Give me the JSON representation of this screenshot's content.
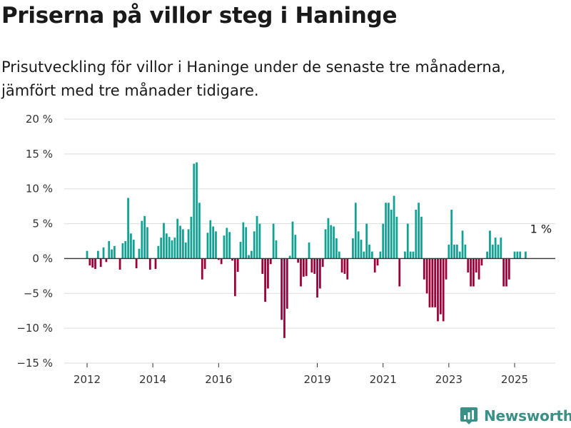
{
  "header": {
    "title": "Priserna på villor steg i Haninge",
    "subtitle": "Prisutveckling för villor i Haninge under de senaste tre månaderna, jämfört med tre månader tidigare."
  },
  "brand": {
    "name": "Newsworthy",
    "icon": "newsworthy-logo-icon",
    "color": "#3a8f86"
  },
  "colors": {
    "positive": "#10a393",
    "negative": "#9b0038",
    "grid": "#dddddd",
    "zero_line": "#333333"
  },
  "chart_data": {
    "type": "bar",
    "title": "Priserna på villor steg i Haninge",
    "subtitle": "Prisutveckling för villor i Haninge under de senaste tre månaderna, jämfört med tre månader tidigare.",
    "xlabel": "",
    "ylabel": "",
    "ylim": [
      -15,
      20
    ],
    "y_ticks": [
      {
        "value": 20,
        "label": "20 %"
      },
      {
        "value": 15,
        "label": "15 %"
      },
      {
        "value": 10,
        "label": "10 %"
      },
      {
        "value": 5,
        "label": "5 %"
      },
      {
        "value": 0,
        "label": "0 %"
      },
      {
        "value": -5,
        "label": "−5 %"
      },
      {
        "value": -10,
        "label": "−10 %"
      },
      {
        "value": -15,
        "label": "−15 %"
      }
    ],
    "x_ticks": [
      {
        "year": 2012,
        "label": "2012"
      },
      {
        "year": 2014,
        "label": "2014"
      },
      {
        "year": 2016,
        "label": "2016"
      },
      {
        "year": 2019,
        "label": "2019"
      },
      {
        "year": 2021,
        "label": "2021"
      },
      {
        "year": 2023,
        "label": "2023"
      },
      {
        "year": 2025,
        "label": "2025"
      }
    ],
    "grid": true,
    "legend": "none",
    "start_month": "2012-01",
    "unit": "%",
    "values": [
      1.1,
      -1.0,
      -1.3,
      -1.5,
      1.1,
      -1.2,
      1.6,
      -0.5,
      2.5,
      1.3,
      1.8,
      0,
      -1.6,
      2.2,
      2.5,
      8.7,
      3.6,
      2.7,
      -1.4,
      1.4,
      5.4,
      6.1,
      4.5,
      -1.6,
      0,
      -1.5,
      1.8,
      3.0,
      5.1,
      3.6,
      3.1,
      2.6,
      3.0,
      5.7,
      4.7,
      4.2,
      2.3,
      4.2,
      6.0,
      13.6,
      13.8,
      8.0,
      -3.0,
      -1.5,
      3.7,
      5.5,
      4.6,
      3.9,
      -0.2,
      -0.8,
      3.3,
      4.4,
      3.8,
      -0.3,
      -5.4,
      -1.9,
      2.4,
      5.2,
      4.5,
      0.5,
      1.1,
      3.9,
      6.1,
      5.0,
      -2.2,
      -6.2,
      -4.3,
      -0.8,
      5.0,
      2.6,
      0,
      -8.8,
      -11.4,
      -7.2,
      0.4,
      5.3,
      3.4,
      -0.6,
      -4.0,
      -2.6,
      -2.5,
      2.3,
      -2.0,
      -2.2,
      -5.6,
      -4.3,
      -1.2,
      4.2,
      5.8,
      4.8,
      4.6,
      2.9,
      1.0,
      -2.0,
      -2.2,
      -3.0,
      0,
      2.9,
      8.0,
      3.9,
      2.7,
      1.0,
      5.0,
      2.0,
      1.0,
      -2.0,
      -1.0,
      1.0,
      5.0,
      8.0,
      8.0,
      7.0,
      9.0,
      6.0,
      -4.0,
      0,
      1.0,
      5.0,
      1.0,
      1.0,
      7.0,
      8.0,
      6.0,
      -3.0,
      -5.0,
      -7.0,
      -7.0,
      -7.0,
      -9.0,
      -8.0,
      -9.0,
      -3.0,
      2.0,
      7.0,
      2.0,
      2.0,
      1.0,
      4.0,
      2.0,
      -2.0,
      -4.0,
      -4.0,
      -2.0,
      -3.0,
      -1.0,
      0,
      1.0,
      4.0,
      2.0,
      3.0,
      2.0,
      3.0,
      -4.0,
      -4.0,
      -3.0,
      0,
      1.0,
      1.0,
      1.0,
      0,
      1.0
    ],
    "annotations": [
      {
        "text": "1 %",
        "year": 2025.8,
        "value": 1
      }
    ]
  }
}
